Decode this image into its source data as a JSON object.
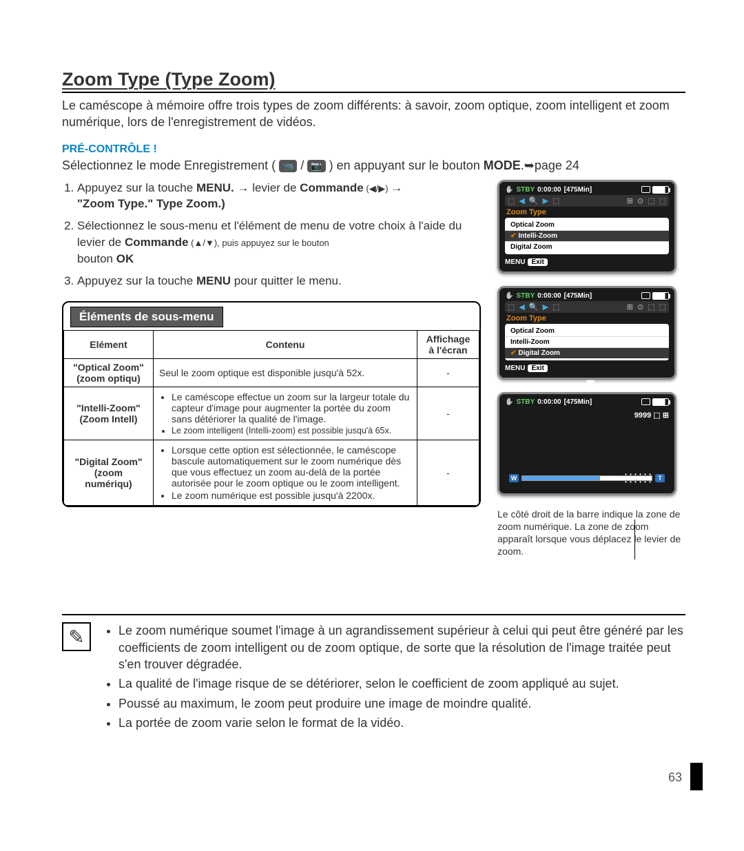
{
  "title": "Zoom Type (Type Zoom)",
  "intro": "Le caméscope à mémoire offre trois types de zoom différents: à savoir, zoom optique, zoom intelligent et zoom numérique, lors de l'enregistrement de vidéos.",
  "pre_control": "PRÉ-CONTRÔLE !",
  "mode_line_1": "Sélectionnez le mode Enregistrement (",
  "mode_line_2": ") en appuyant sur le bouton ",
  "mode_bold": "MODE",
  "mode_line_3": ".",
  "mode_page": "page 24",
  "step1_a": "Appuyez sur la touche ",
  "step1_menu": "MENU.",
  "step1_b": " levier de ",
  "step1_cmd": "Commande",
  "step1_arrows": " (◀/▶) ",
  "step1_zoom": "\"Zoom Type.\" Type Zoom.)",
  "step2_a": "Sélectionnez le sous-menu et l'élément de menu de votre choix à l'aide du levier de ",
  "step2_cmd": "Commande",
  "step2_arrows": " (▲/▼), puis appuyez sur le bouton ",
  "step2_ok": "OK",
  "step3_a": "Appuyez sur la touche ",
  "step3_menu": "MENU",
  "step3_b": " pour quitter le menu.",
  "submenu_title": "Éléments de sous-menu",
  "table": {
    "headers": [
      "Elément",
      "Contenu",
      "Affichage à l'écran"
    ],
    "rows": [
      {
        "elem": "\"Optical Zoom\" (zoom optiqu)",
        "content_plain": "Seul le zoom optique est disponible jusqu'à 52x.",
        "disp": "-"
      },
      {
        "elem": "\"Intelli-Zoom\" (Zoom Intell)",
        "bullets": [
          "Le caméscope effectue un zoom sur la largeur totale du capteur d'image pour augmenter la portée du zoom sans détériorer la qualité de l'image.",
          "Le zoom intelligent (Intelli-zoom) est possible jusqu'à 65x."
        ],
        "disp": "-"
      },
      {
        "elem": "\"Digital Zoom\" (zoom numériqu)",
        "bullets": [
          "Lorsque cette option est sélectionnée, le caméscope bascule automatiquement sur le zoom numérique dès que vous effectuez un zoom au-delà de la portée autorisée pour le zoom optique ou le zoom intelligent.",
          "Le zoom numérique est possible jusqu'à 2200x."
        ],
        "disp": "-"
      }
    ]
  },
  "lcd": {
    "stby": "STBY",
    "time": "0:00:00",
    "remain": "[475Min]",
    "zoom_type": "Zoom Type",
    "items": [
      "Optical Zoom",
      "Intelli-Zoom",
      "Digital Zoom"
    ],
    "menu": "MENU",
    "exit": "Exit",
    "count": "9999"
  },
  "zoom_label_w": "W",
  "zoom_label_t": "T",
  "zoom_note": "Le côté droit de la barre indique la zone de zoom numérique. La zone de zoom apparaît lorsque vous déplacez le levier de zoom.",
  "notes": [
    "Le zoom numérique soumet l'image à un agrandissement supérieur à celui qui peut être généré par les coefficients de zoom intelligent ou de zoom optique, de sorte que la résolution de l'image traitée peut s'en trouver dégradée.",
    "La qualité de l'image risque de se détériorer, selon le coefficient de zoom appliqué au sujet.",
    "Poussé au maximum, le zoom peut produire une image de moindre qualité.",
    "La portée de zoom varie selon le format de la vidéo."
  ],
  "page_number": "63",
  "icon_slash": " / "
}
